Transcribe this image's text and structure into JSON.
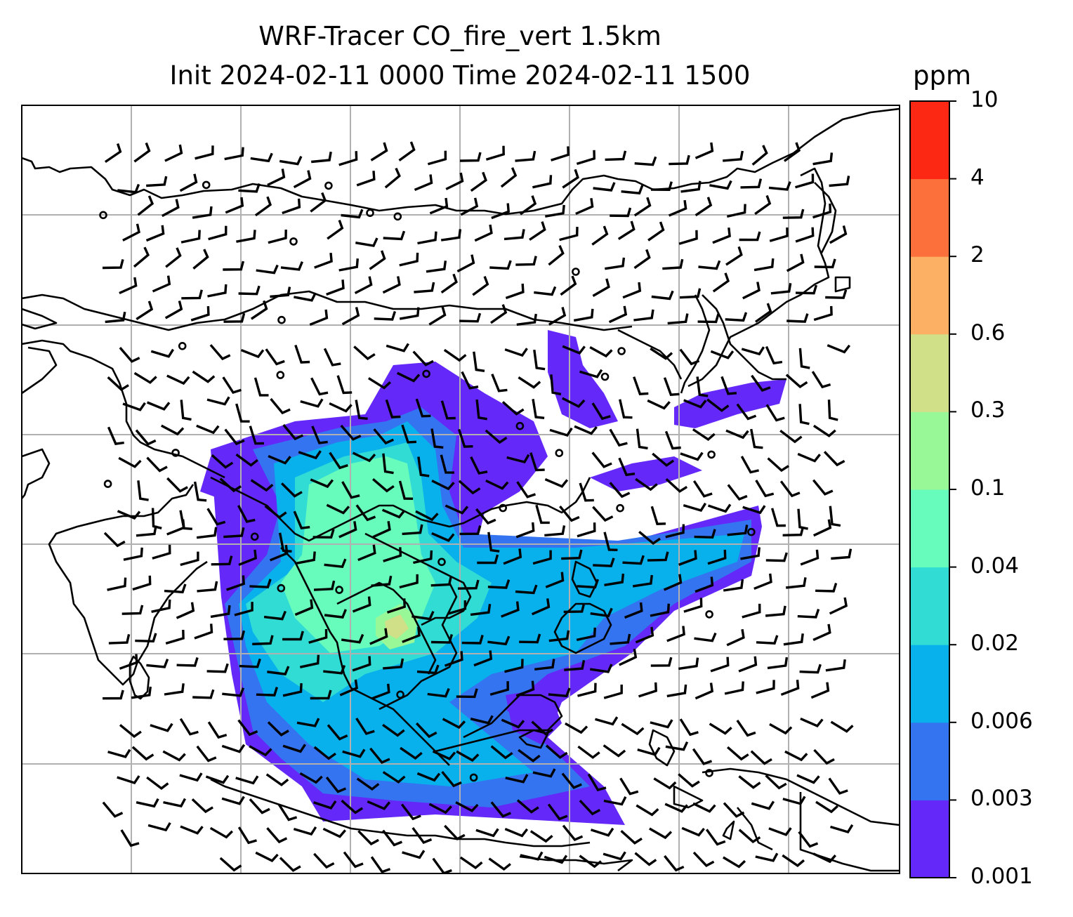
{
  "title": {
    "line1": "WRF-Tracer CO_fire_vert 1.5km",
    "line2": "Init 2024-02-11 0000 Time 2024-02-11 1500"
  },
  "colorbar": {
    "unit": "ppm",
    "ticks": [
      "0.001",
      "0.003",
      "0.006",
      "0.02",
      "0.04",
      "0.1",
      "0.3",
      "0.6",
      "2",
      "4",
      "10"
    ],
    "colors": [
      "#6428f8",
      "#3474f0",
      "#08b0ec",
      "#30dcd4",
      "#68fcbc",
      "#98f898",
      "#d0e088",
      "#fcb064",
      "#fc703c",
      "#fc2814"
    ]
  },
  "map": {
    "field_name": "CO_fire_vert",
    "level": "1.5km",
    "gridlines": true,
    "wind_barbs": true
  }
}
